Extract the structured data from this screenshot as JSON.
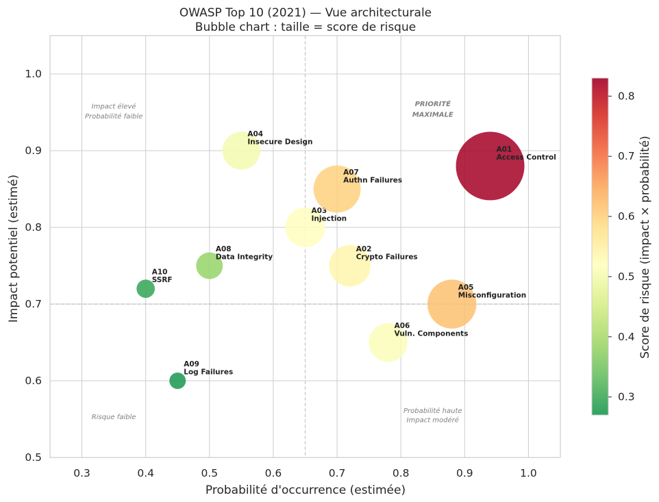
{
  "chart_data": {
    "type": "scatter",
    "title": "OWASP Top 10 (2021) — Vue architecturale",
    "subtitle": "Bubble chart : taille = score de risque",
    "xlabel": "Probabilité d'occurrence (estimée)",
    "ylabel": "Impact potentiel (estimé)",
    "xlim": [
      0.25,
      1.05
    ],
    "ylim": [
      0.5,
      1.05
    ],
    "xticks": [
      0.3,
      0.4,
      0.5,
      0.6,
      0.7,
      0.8,
      0.9,
      1.0
    ],
    "yticks": [
      0.5,
      0.6,
      0.7,
      0.8,
      0.9,
      1.0
    ],
    "grid": true,
    "reference_lines": {
      "x": 0.65,
      "y": 0.7
    },
    "points": [
      {
        "id": "A01",
        "name": "Access Control",
        "x": 0.94,
        "y": 0.88,
        "score": 0.83
      },
      {
        "id": "A02",
        "name": "Crypto Failures",
        "x": 0.72,
        "y": 0.75,
        "score": 0.54
      },
      {
        "id": "A03",
        "name": "Injection",
        "x": 0.65,
        "y": 0.8,
        "score": 0.52
      },
      {
        "id": "A04",
        "name": "Insecure Design",
        "x": 0.55,
        "y": 0.9,
        "score": 0.5
      },
      {
        "id": "A05",
        "name": "Misconfiguration",
        "x": 0.88,
        "y": 0.7,
        "score": 0.62
      },
      {
        "id": "A06",
        "name": "Vuln. Components",
        "x": 0.78,
        "y": 0.65,
        "score": 0.51
      },
      {
        "id": "A07",
        "name": "Authn Failures",
        "x": 0.7,
        "y": 0.85,
        "score": 0.6
      },
      {
        "id": "A08",
        "name": "Data Integrity",
        "x": 0.5,
        "y": 0.75,
        "score": 0.38
      },
      {
        "id": "A09",
        "name": "Log Failures",
        "x": 0.45,
        "y": 0.6,
        "score": 0.27
      },
      {
        "id": "A10",
        "name": "SSRF",
        "x": 0.4,
        "y": 0.72,
        "score": 0.29
      }
    ],
    "annotations": [
      {
        "text": "Impact élevé",
        "x": 0.35,
        "y": 0.955,
        "color": "#808080",
        "style": "italic"
      },
      {
        "text": "Probabilité faible",
        "x": 0.35,
        "y": 0.942,
        "color": "#808080",
        "style": "italic"
      },
      {
        "text": "PRIORITÉ",
        "x": 0.85,
        "y": 0.958,
        "color": "#ff0000",
        "style": "bold"
      },
      {
        "text": "MAXIMALE",
        "x": 0.85,
        "y": 0.944,
        "color": "#ff0000",
        "style": "bold"
      },
      {
        "text": "Risque faible",
        "x": 0.35,
        "y": 0.55,
        "color": "#808080",
        "style": "italic"
      },
      {
        "text": "Probabilité haute",
        "x": 0.85,
        "y": 0.558,
        "color": "#ff8c00",
        "style": "italic"
      },
      {
        "text": "Impact modéré",
        "x": 0.85,
        "y": 0.546,
        "color": "#ff8c00",
        "style": "italic"
      }
    ],
    "colorbar": {
      "label": "Score de risque (impact × probabilité)",
      "min": 0.27,
      "max": 0.83,
      "ticks": [
        0.3,
        0.4,
        0.5,
        0.6,
        0.7,
        0.8
      ],
      "colormap": "RdYlGn_r",
      "colors": [
        "#1a9850",
        "#66bd63",
        "#a6d96a",
        "#d9ef8b",
        "#ffffbf",
        "#fee08b",
        "#fdae61",
        "#f46d43",
        "#d73027",
        "#a50026"
      ]
    }
  }
}
